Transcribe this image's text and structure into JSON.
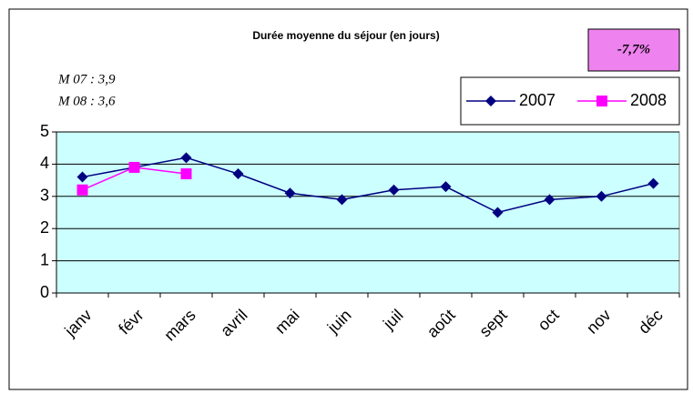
{
  "chart_data": {
    "type": "line",
    "title": "Durée moyenne du séjour (en jours)",
    "annotations": [
      "-7,7%",
      "M 07 : 3,9",
      "M 08 : 3,6"
    ],
    "categories": [
      "janv",
      "févr",
      "mars",
      "avril",
      "mai",
      "juin",
      "juil",
      "août",
      "sept",
      "oct",
      "nov",
      "déc"
    ],
    "series": [
      {
        "name": "2007",
        "color": "#000080",
        "marker": "diamond",
        "values": [
          3.6,
          3.9,
          4.2,
          3.7,
          3.1,
          2.9,
          3.2,
          3.3,
          2.5,
          2.9,
          3.0,
          3.4
        ]
      },
      {
        "name": "2008",
        "color": "#ff00ff",
        "marker": "square",
        "values": [
          3.2,
          3.9,
          3.7,
          null,
          null,
          null,
          null,
          null,
          null,
          null,
          null,
          null
        ]
      }
    ],
    "ylim": [
      0,
      5
    ],
    "yticks": [
      0,
      1,
      2,
      3,
      4,
      5
    ],
    "grid": true,
    "legend": "upper right",
    "plot_background": "#ccffff",
    "annotation_box_color": "#ee82ee"
  }
}
